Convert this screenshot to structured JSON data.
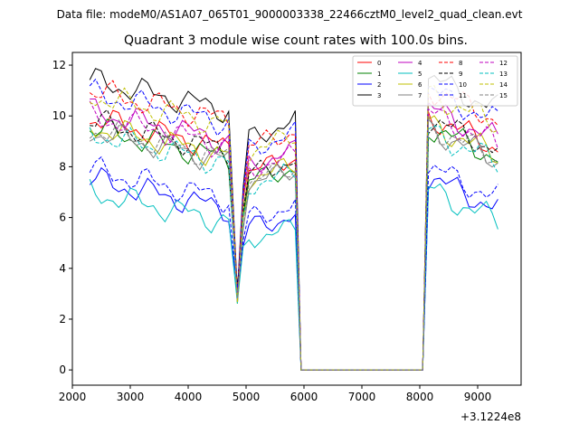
{
  "chart_data": {
    "type": "line",
    "suptitle": "Data file: modeM0/AS1A07_065T01_9000003338_22466cztM0_level2_quad_clean.evt",
    "title": "Quadrant 3 module wise count rates with 100.0s bins.",
    "xlabel": "",
    "ylabel": "",
    "x_offset_label": "+3.1224e8",
    "xlim": [
      2000,
      9750
    ],
    "ylim": [
      -0.6,
      12.5
    ],
    "xticks": [
      2000,
      3000,
      4000,
      5000,
      6000,
      7000,
      8000,
      9000
    ],
    "yticks": [
      0,
      2,
      4,
      6,
      8,
      10,
      12
    ],
    "legend_position": "upper right",
    "legend_columns": 4,
    "series": [
      {
        "name": "0",
        "color": "#ff0000",
        "dashed": false,
        "level": 8.7,
        "phase": 0.3
      },
      {
        "name": "1",
        "color": "#008000",
        "dashed": false,
        "level": 8.3,
        "phase": 1.1
      },
      {
        "name": "2",
        "color": "#0000ff",
        "dashed": false,
        "level": 6.3,
        "phase": 2.0
      },
      {
        "name": "3",
        "color": "#000000",
        "dashed": false,
        "level": 10.2,
        "phase": 2.7
      },
      {
        "name": "4",
        "color": "#bf00bf",
        "dashed": false,
        "level": 9.0,
        "phase": 3.4
      },
      {
        "name": "5",
        "color": "#00bfbf",
        "dashed": false,
        "level": 5.8,
        "phase": 4.2
      },
      {
        "name": "6",
        "color": "#bfbf00",
        "dashed": false,
        "level": 8.4,
        "phase": 5.0
      },
      {
        "name": "7",
        "color": "#808080",
        "dashed": false,
        "level": 8.2,
        "phase": 5.7
      },
      {
        "name": "8",
        "color": "#ff0000",
        "dashed": true,
        "level": 9.8,
        "phase": 0.8
      },
      {
        "name": "9",
        "color": "#000000",
        "dashed": true,
        "level": 8.6,
        "phase": 1.6
      },
      {
        "name": "10",
        "color": "#0000ff",
        "dashed": true,
        "level": 6.7,
        "phase": 2.4
      },
      {
        "name": "11",
        "color": "#0000ff",
        "dashed": true,
        "level": 9.7,
        "phase": 3.1
      },
      {
        "name": "12",
        "color": "#bf00bf",
        "dashed": true,
        "level": 8.8,
        "phase": 3.9
      },
      {
        "name": "13",
        "color": "#00bfbf",
        "dashed": true,
        "level": 8.1,
        "phase": 4.6
      },
      {
        "name": "14",
        "color": "#bfbf00",
        "dashed": true,
        "level": 9.6,
        "phase": 5.3
      },
      {
        "name": "15",
        "color": "#808080",
        "dashed": true,
        "level": 8.3,
        "phase": 6.0
      }
    ],
    "segments": [
      {
        "x_start": 2300,
        "x_end": 4750,
        "start_boost": 1.2
      },
      {
        "x_start": 4850,
        "x_end": 5850,
        "start_boost": 0.0
      },
      {
        "x_start": 5950,
        "x_end": 8050,
        "start_boost": 0.0
      },
      {
        "x_start": 8150,
        "x_end": 9400,
        "start_boost": 1.3
      }
    ],
    "dip_minima": {
      "x": 4850,
      "value": 3.3
    },
    "gap_value": 0
  }
}
